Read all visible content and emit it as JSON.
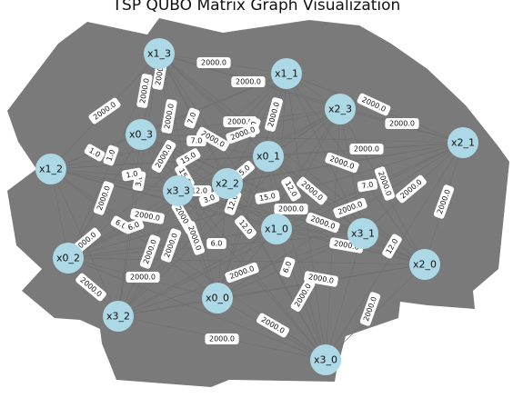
{
  "title": "TSP QUBO Matrix Graph Visualization",
  "colors": {
    "edge_mass": "#7a7a7a",
    "node_fill": "#add8e6",
    "label_box": "#ffffff"
  },
  "nodes": [
    {
      "id": "x1_3",
      "label": "x1_3"
    },
    {
      "id": "x1_1",
      "label": "x1_1"
    },
    {
      "id": "x2_3",
      "label": "x2_3"
    },
    {
      "id": "x2_1",
      "label": "x2_1"
    },
    {
      "id": "x0_3",
      "label": "x0_3"
    },
    {
      "id": "x0_1",
      "label": "x0_1"
    },
    {
      "id": "x1_2",
      "label": "x1_2"
    },
    {
      "id": "x2_2",
      "label": "x2_2"
    },
    {
      "id": "x3_3",
      "label": "x3_3"
    },
    {
      "id": "x1_0",
      "label": "x1_0"
    },
    {
      "id": "x3_1",
      "label": "x3_1"
    },
    {
      "id": "x0_2",
      "label": "x0_2"
    },
    {
      "id": "x2_0",
      "label": "x2_0"
    },
    {
      "id": "x0_0",
      "label": "x0_0"
    },
    {
      "id": "x3_2",
      "label": "x3_2"
    },
    {
      "id": "x3_0",
      "label": "x3_0"
    }
  ],
  "edge_labels": [
    {
      "text": "2000.0"
    },
    {
      "text": "2000.0"
    },
    {
      "text": "2000.0"
    },
    {
      "text": "2000.0"
    },
    {
      "text": "2000.0"
    },
    {
      "text": "2000.0"
    },
    {
      "text": "2000.0"
    },
    {
      "text": "2000.0"
    },
    {
      "text": "7.0"
    },
    {
      "text": "2000.0"
    },
    {
      "text": "2000.0"
    },
    {
      "text": "7.0"
    },
    {
      "text": "2000.0"
    },
    {
      "text": "1.0"
    },
    {
      "text": "1.0"
    },
    {
      "text": "2000.0"
    },
    {
      "text": "15.0"
    },
    {
      "text": "2000.0"
    },
    {
      "text": "3.0"
    },
    {
      "text": "15.0"
    },
    {
      "text": "7.0"
    },
    {
      "text": "2000.0"
    },
    {
      "text": "2000.0"
    },
    {
      "text": "12.0"
    },
    {
      "text": "15.0"
    },
    {
      "text": "2000.0"
    },
    {
      "text": "2000.0"
    },
    {
      "text": "2000.0"
    },
    {
      "text": "3.0"
    },
    {
      "text": "12.0"
    },
    {
      "text": "1.0"
    },
    {
      "text": "2000.0"
    },
    {
      "text": "15.0"
    },
    {
      "text": "12.0"
    },
    {
      "text": "2000.0"
    },
    {
      "text": "2000.0"
    },
    {
      "text": "6.0"
    },
    {
      "text": "6.0"
    },
    {
      "text": "2000.0"
    },
    {
      "text": "2000.0"
    },
    {
      "text": "6.0"
    },
    {
      "text": "2000.0"
    },
    {
      "text": "12.0"
    },
    {
      "text": "2000.0"
    },
    {
      "text": "2000.0"
    },
    {
      "text": "6.0"
    },
    {
      "text": "2000.0"
    },
    {
      "text": "2000.0"
    },
    {
      "text": "2000.0"
    },
    {
      "text": "7.0"
    },
    {
      "text": "2000.0"
    },
    {
      "text": "2000.0"
    },
    {
      "text": "2000.0"
    },
    {
      "text": "2000.0"
    },
    {
      "text": "2000.0"
    },
    {
      "text": "2000.0"
    },
    {
      "text": "2000.0"
    },
    {
      "text": "2000.0"
    },
    {
      "text": "12.0"
    },
    {
      "text": "2000.0"
    }
  ]
}
